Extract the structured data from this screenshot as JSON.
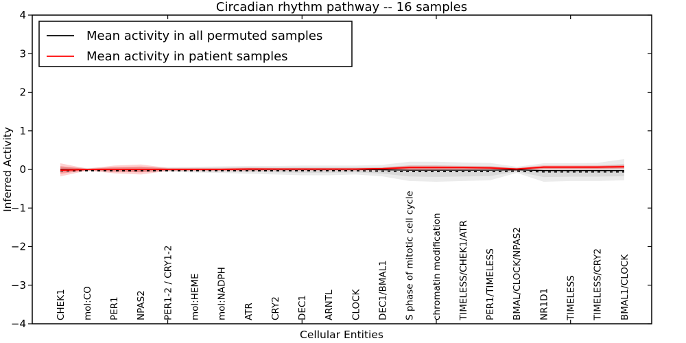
{
  "chart_data": {
    "type": "line",
    "title": "Circadian rhythm pathway -- 16 samples",
    "xlabel": "Cellular Entities",
    "ylabel": "Inferred Activity",
    "ylim": [
      -4,
      4
    ],
    "yticks": [
      -4,
      -3,
      -2,
      -1,
      0,
      1,
      2,
      3,
      4
    ],
    "grid": false,
    "legend_position": "upper left",
    "categories": [
      "CHEK1",
      "mol:CO",
      "PER1",
      "NPAS2",
      "PER1-2 / CRY1-2",
      "mol:HEME",
      "mol:NADPH",
      "ATR",
      "CRY2",
      "DEC1",
      "ARNTL",
      "CLOCK",
      "DEC1/BMAL1",
      "S phase of mitotic cell cycle",
      "chromatin modification",
      "TIMELESS/CHEK1/ATR",
      "PER1/TIMELESS",
      "BMAL/CLOCK/NPAS2",
      "NR1D1",
      "TIMELESS",
      "TIMELESS/CRY2",
      "BMAL1/CLOCK"
    ],
    "series": [
      {
        "name": "Mean activity in all permuted samples",
        "color": "#000000",
        "line_style": "solid-with-dashed-shadow",
        "values": [
          0,
          0,
          0,
          0,
          0,
          0,
          0,
          0,
          0,
          0,
          0,
          0,
          -0.01,
          -0.02,
          -0.02,
          -0.02,
          -0.02,
          -0.01,
          -0.03,
          -0.03,
          -0.03,
          -0.03
        ],
        "band": {
          "color": "#999999",
          "upper": [
            0.08,
            0.04,
            0.06,
            0.07,
            0.06,
            0.07,
            0.08,
            0.09,
            0.09,
            0.1,
            0.1,
            0.1,
            0.12,
            0.2,
            0.2,
            0.18,
            0.17,
            0.07,
            0.16,
            0.16,
            0.17,
            0.27
          ],
          "lower": [
            -0.08,
            -0.04,
            -0.06,
            -0.07,
            -0.06,
            -0.08,
            -0.09,
            -0.11,
            -0.13,
            -0.15,
            -0.15,
            -0.13,
            -0.18,
            -0.3,
            -0.32,
            -0.3,
            -0.28,
            -0.09,
            -0.32,
            -0.3,
            -0.3,
            -0.28
          ]
        }
      },
      {
        "name": "Mean activity in patient samples",
        "color": "#ff0000",
        "line_style": "solid",
        "values": [
          -0.02,
          0,
          0,
          0,
          0,
          0,
          0,
          0.01,
          0.01,
          0.01,
          0.01,
          0.01,
          0.02,
          0.05,
          0.05,
          0.05,
          0.04,
          0.01,
          0.06,
          0.06,
          0.06,
          0.07
        ],
        "band": {
          "color": "#ff0000",
          "upper": [
            0.16,
            0.02,
            0.1,
            0.13,
            0.04,
            0.04,
            0.04,
            0.05,
            0.04,
            0.04,
            0.04,
            0.04,
            0.05,
            0.1,
            0.1,
            0.09,
            0.08,
            0.04,
            0.11,
            0.11,
            0.11,
            0.12
          ],
          "lower": [
            -0.18,
            -0.03,
            -0.1,
            -0.13,
            -0.04,
            -0.04,
            -0.04,
            -0.04,
            -0.03,
            -0.03,
            -0.03,
            -0.03,
            -0.02,
            -0.03,
            -0.03,
            -0.02,
            -0.02,
            -0.03,
            0.0,
            0.0,
            0.0,
            0.01
          ]
        }
      }
    ],
    "x_major_tick_indices": [
      4,
      9,
      14,
      19
    ]
  }
}
